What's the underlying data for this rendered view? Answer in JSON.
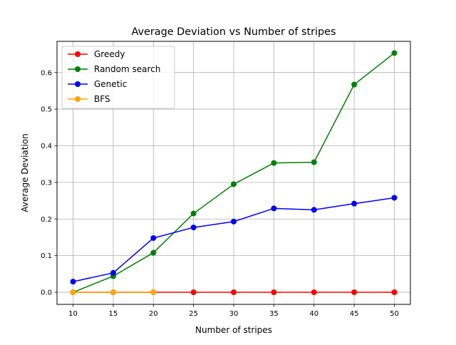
{
  "chart_data": {
    "type": "line",
    "title": "Average Deviation vs Number of stripes",
    "xlabel": "Number of stripes",
    "ylabel": "Average Deviation",
    "xlim": [
      8,
      52
    ],
    "ylim": [
      -0.033,
      0.685
    ],
    "x_ticks": [
      10,
      15,
      20,
      25,
      30,
      35,
      40,
      45,
      50
    ],
    "y_ticks": [
      0.0,
      0.1,
      0.2,
      0.3,
      0.4,
      0.5,
      0.6
    ],
    "x_tick_labels": [
      "10",
      "15",
      "20",
      "25",
      "30",
      "35",
      "40",
      "45",
      "50"
    ],
    "y_tick_labels": [
      "0.0",
      "0.1",
      "0.2",
      "0.3",
      "0.4",
      "0.5",
      "0.6"
    ],
    "grid": true,
    "legend_position": "top-left",
    "series": [
      {
        "name": "Greedy",
        "color": "#ff0000",
        "x": [
          10,
          15,
          20,
          25,
          30,
          35,
          40,
          45,
          50
        ],
        "values": [
          0.0,
          0.0,
          0.0,
          0.0,
          0.0,
          0.0,
          0.0,
          0.0,
          0.0
        ]
      },
      {
        "name": "Random search",
        "color": "#008000",
        "x": [
          10,
          15,
          20,
          25,
          30,
          35,
          40,
          45,
          50
        ],
        "values": [
          0.0,
          0.044,
          0.108,
          0.215,
          0.295,
          0.353,
          0.355,
          0.567,
          0.653
        ]
      },
      {
        "name": "Genetic",
        "color": "#0000ff",
        "x": [
          10,
          15,
          20,
          25,
          30,
          35,
          40,
          45,
          50
        ],
        "values": [
          0.029,
          0.053,
          0.148,
          0.177,
          0.193,
          0.229,
          0.225,
          0.242,
          0.258
        ]
      },
      {
        "name": "BFS",
        "color": "#ffa500",
        "x": [
          10,
          15,
          20
        ],
        "values": [
          0.0,
          0.0,
          0.0
        ]
      }
    ]
  }
}
